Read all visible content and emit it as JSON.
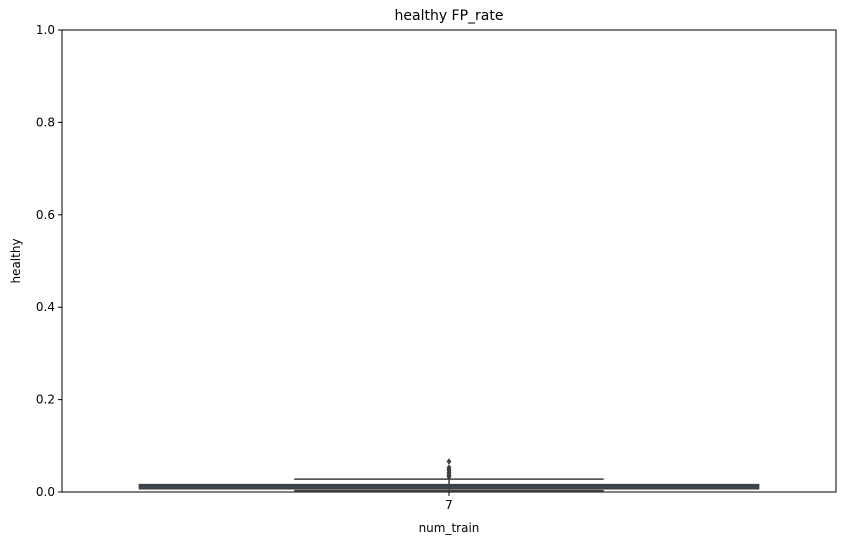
{
  "chart_data": {
    "type": "box",
    "title": "healthy FP_rate",
    "xlabel": "num_train",
    "ylabel": "healthy",
    "categories": [
      "7"
    ],
    "ylim": [
      0,
      1
    ],
    "yticks": [
      "0.0",
      "0.2",
      "0.4",
      "0.6",
      "0.8",
      "1.0"
    ],
    "grid": false,
    "box": {
      "category": "7",
      "whisker_low": 0.003,
      "q1": 0.007,
      "median": 0.012,
      "q3": 0.016,
      "whisker_high": 0.028,
      "outliers": [
        0.033,
        0.036,
        0.039,
        0.042,
        0.046,
        0.049,
        0.053,
        0.066
      ]
    },
    "colors": {
      "box_fill": "#3a4e66",
      "line": "#3f3f3f",
      "outlier": "#3f3f3f"
    }
  }
}
